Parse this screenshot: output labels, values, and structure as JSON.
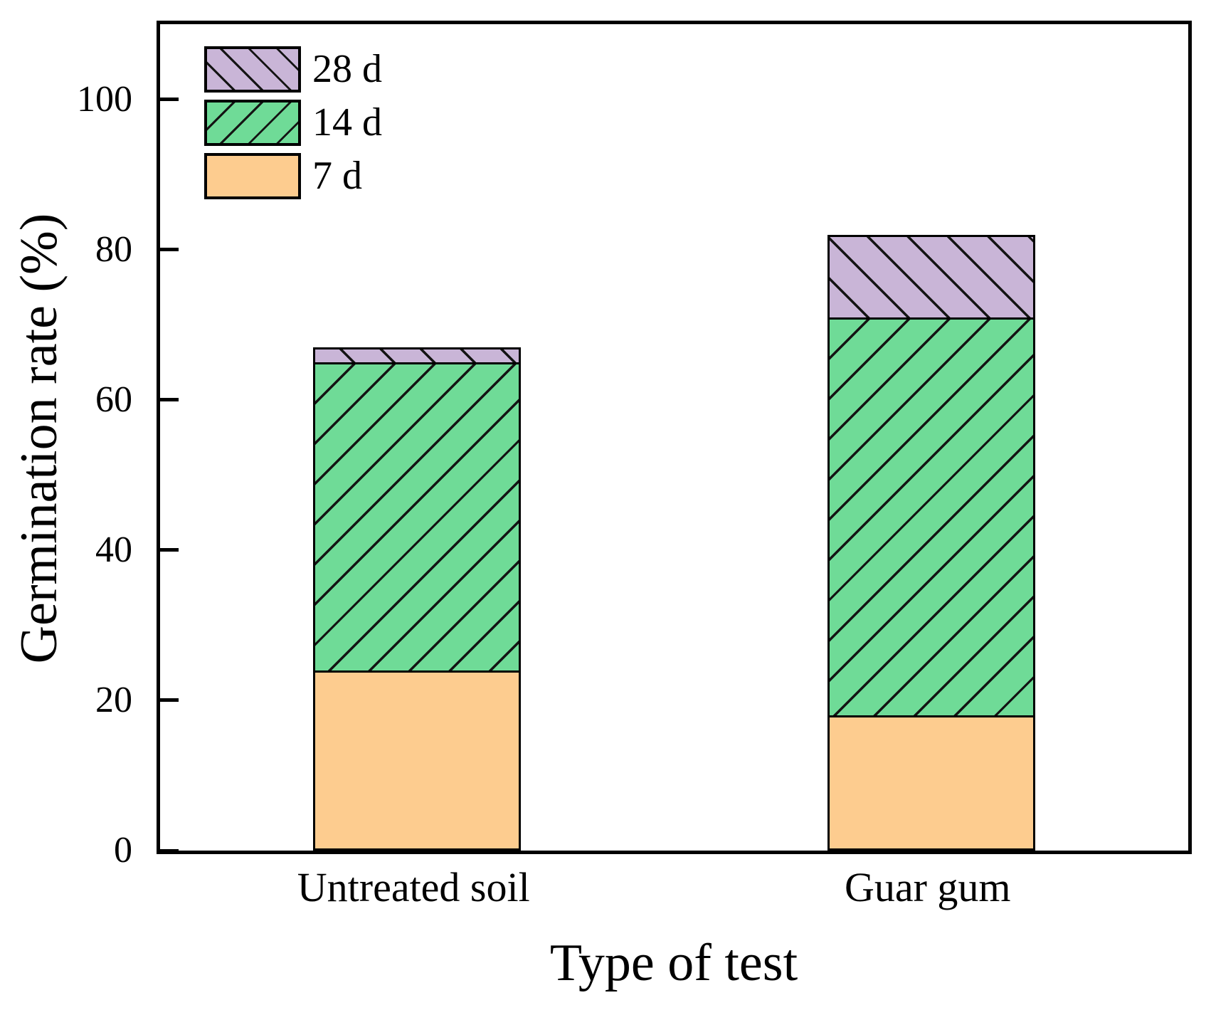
{
  "figure": {
    "background": "#ffffff",
    "frame_color": "#000000",
    "text_color": "#000000"
  },
  "chart_data": {
    "type": "bar",
    "stacked": true,
    "categories": [
      "Untreated soil",
      "Guar gum"
    ],
    "series": [
      {
        "name": "7 d",
        "values": [
          24,
          18
        ],
        "color": "#fdcc8f",
        "hatch": "none"
      },
      {
        "name": "14 d",
        "values": [
          41,
          53
        ],
        "color": "#6fdb97",
        "hatch": "/"
      },
      {
        "name": "28 d",
        "values": [
          2,
          11
        ],
        "color": "#c9b5d7",
        "hatch": "\\"
      }
    ],
    "stack_totals": [
      67,
      82
    ],
    "xlabel": "Type of test",
    "ylabel": "Germination rate (%)",
    "ylim": [
      0,
      110
    ],
    "yticks": [
      0,
      20,
      40,
      60,
      80,
      100
    ],
    "grid": false,
    "legend": {
      "position": "top-left",
      "entries": [
        "28 d",
        "14 d",
        "7 d"
      ]
    }
  }
}
